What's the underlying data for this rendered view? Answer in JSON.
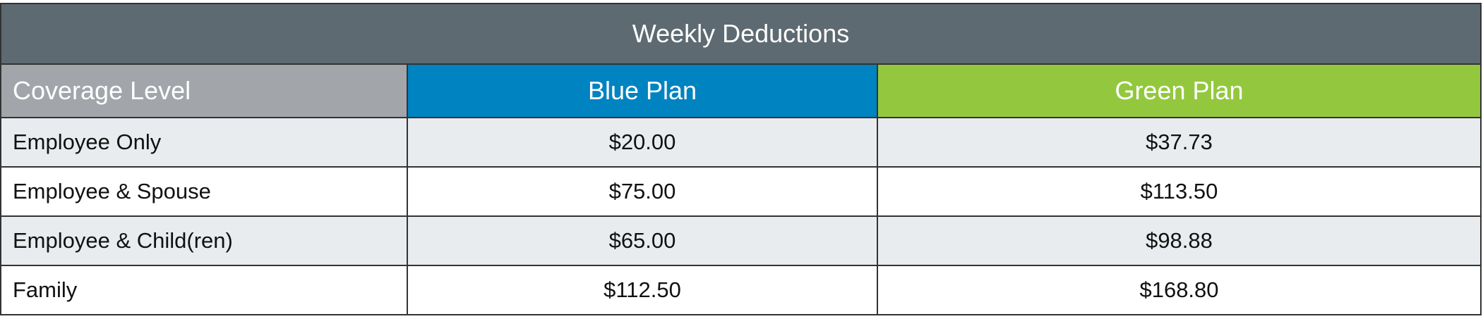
{
  "title": "Weekly Deductions",
  "headers": {
    "coverage": "Coverage Level",
    "blue": "Blue Plan",
    "green": "Green Plan"
  },
  "colors": {
    "title_bg": "#5d6a72",
    "coverage_header": "#a2a5aa",
    "blue_plan": "#0083c1",
    "green_plan": "#93c83e"
  },
  "rows": [
    {
      "level": "Employee Only",
      "blue": "$20.00",
      "green": "$37.73"
    },
    {
      "level": "Employee & Spouse",
      "blue": "$75.00",
      "green": "$113.50"
    },
    {
      "level": "Employee & Child(ren)",
      "blue": "$65.00",
      "green": "$98.88"
    },
    {
      "level": "Family",
      "blue": "$112.50",
      "green": "$168.80"
    }
  ]
}
